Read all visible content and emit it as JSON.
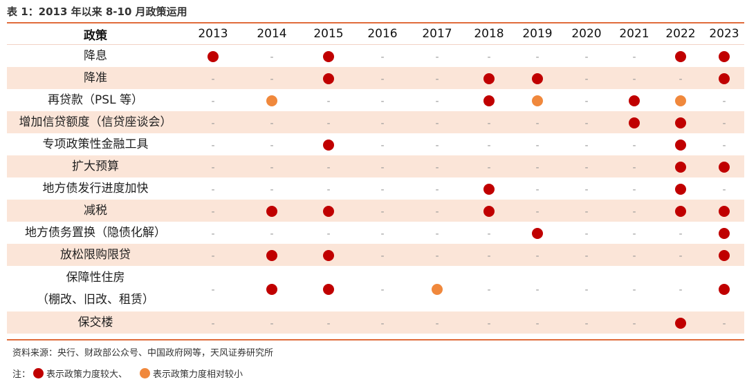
{
  "title": "表 1：2013 年以来 8-10 月政策运用",
  "header": {
    "policy_col": "政策",
    "years": [
      "2013",
      "2014",
      "2015",
      "2016",
      "2017",
      "2018",
      "2019",
      "2020",
      "2021",
      "2022",
      "2023"
    ]
  },
  "colors": {
    "large": "#c00000",
    "relative": "#f0883c",
    "shade": "#fbe5d8",
    "rule": "#e06b3a"
  },
  "rows": [
    {
      "policy": "降息",
      "cells": [
        "L",
        "-",
        "L",
        "-",
        "-",
        "-",
        "-",
        "-",
        "-",
        "L",
        "L"
      ]
    },
    {
      "policy": "降准",
      "cells": [
        "-",
        "-",
        "L",
        "-",
        "-",
        "L",
        "L",
        "-",
        "-",
        "-",
        "L"
      ]
    },
    {
      "policy": "再贷款（PSL 等）",
      "cells": [
        "-",
        "R",
        "-",
        "-",
        "-",
        "L",
        "R",
        "-",
        "L",
        "R",
        "-"
      ]
    },
    {
      "policy": "增加信贷额度（信贷座谈会）",
      "cells": [
        "-",
        "-",
        "-",
        "-",
        "-",
        "-",
        "-",
        "-",
        "L",
        "L",
        "-"
      ]
    },
    {
      "policy": "专项政策性金融工具",
      "cells": [
        "-",
        "-",
        "L",
        "-",
        "-",
        "-",
        "-",
        "-",
        "-",
        "L",
        "-"
      ]
    },
    {
      "policy": "扩大预算",
      "cells": [
        "-",
        "-",
        "-",
        "-",
        "-",
        "-",
        "-",
        "-",
        "-",
        "L",
        "L"
      ]
    },
    {
      "policy": "地方债发行进度加快",
      "cells": [
        "-",
        "-",
        "-",
        "-",
        "-",
        "L",
        "-",
        "-",
        "-",
        "L",
        "-"
      ]
    },
    {
      "policy": "减税",
      "cells": [
        "-",
        "L",
        "L",
        "-",
        "-",
        "L",
        "-",
        "-",
        "-",
        "L",
        "L"
      ]
    },
    {
      "policy": "地方债务置换（隐债化解）",
      "cells": [
        "-",
        "-",
        "-",
        "-",
        "-",
        "-",
        "L",
        "-",
        "-",
        "-",
        "L"
      ]
    },
    {
      "policy": "放松限购限贷",
      "cells": [
        "-",
        "L",
        "L",
        "-",
        "-",
        "-",
        "-",
        "-",
        "-",
        "-",
        "L"
      ]
    },
    {
      "policy": "保障性住房\n（棚改、旧改、租赁）",
      "cells": [
        "-",
        "L",
        "L",
        "-",
        "R",
        "-",
        "-",
        "-",
        "-",
        "-",
        "L"
      ]
    },
    {
      "policy": "保交楼",
      "cells": [
        "-",
        "-",
        "-",
        "-",
        "-",
        "-",
        "-",
        "-",
        "-",
        "L",
        "-"
      ]
    }
  ],
  "dash_symbol": "-",
  "source": "资料来源：央行、财政部公众号、中国政府网等，天风证券研究所",
  "note": {
    "prefix": "注：",
    "large_label": "表示政策力度较大、",
    "relative_label": "表示政策力度相对较小"
  }
}
